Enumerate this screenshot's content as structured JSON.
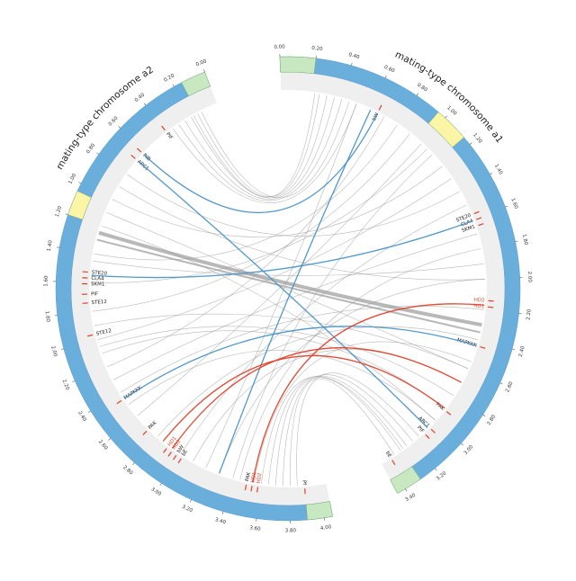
{
  "chart_data": {
    "type": "chord",
    "link_color": "#9a9a9a",
    "band_color": "#6aaedb",
    "track_color": "#efefef",
    "chromosomes": [
      {
        "name": "mating-type chromosome a1",
        "length": 3.45,
        "ticks": [
          {
            "value": 0,
            "label": "0.00"
          },
          {
            "value": 0.2,
            "label": "0.20"
          },
          {
            "value": 0.4,
            "label": "0.40"
          },
          {
            "value": 0.6,
            "label": "0.60"
          },
          {
            "value": 0.8,
            "label": "0.80"
          },
          {
            "value": 1,
            "label": "1.00"
          },
          {
            "value": 1.2,
            "label": "1.20"
          },
          {
            "value": 1.4,
            "label": "1.40"
          },
          {
            "value": 1.6,
            "label": "1.60"
          },
          {
            "value": 1.8,
            "label": "1.80"
          },
          {
            "value": 2,
            "label": "2.00"
          },
          {
            "value": 2.2,
            "label": "2.20"
          },
          {
            "value": 2.4,
            "label": "2.40"
          },
          {
            "value": 2.6,
            "label": "2.60"
          },
          {
            "value": 2.8,
            "label": "2.80"
          },
          {
            "value": 3,
            "label": "3.00"
          },
          {
            "value": 3.2,
            "label": "3.20"
          },
          {
            "value": 3.4,
            "label": "3.40"
          }
        ],
        "regions": [
          {
            "start": 0,
            "end": 0.2,
            "color": "#c8e8c2"
          },
          {
            "start": 0.95,
            "end": 1.15,
            "color": "#fbf5a6"
          },
          {
            "start": 3.3,
            "end": 3.45,
            "color": "#c8e8c2"
          }
        ],
        "genes": [
          {
            "name": "bW",
            "pos": 0.65,
            "color": "#222222"
          },
          {
            "name": "STE20",
            "pos": 1.57,
            "color": "#222222"
          },
          {
            "name": "CLA4",
            "pos": 1.61,
            "color": "#222222"
          },
          {
            "name": "SKM1",
            "pos": 1.65,
            "color": "#222222"
          },
          {
            "name": "HD2",
            "pos": 2.14,
            "color": "#e0402a"
          },
          {
            "name": "HD1",
            "pos": 2.18,
            "color": "#e0402a"
          },
          {
            "name": "MAPKKK",
            "pos": 2.44,
            "color": "#222222"
          },
          {
            "name": "PAK",
            "pos": 2.91,
            "color": "#222222"
          },
          {
            "name": "ARC1",
            "pos": 3.06,
            "color": "#222222"
          },
          {
            "name": "PIF",
            "pos": 3.11,
            "color": "#222222"
          },
          {
            "name": "bE",
            "pos": 3.38,
            "color": "#222222"
          }
        ]
      },
      {
        "name": "mating-type chromosome a2",
        "length": 4.05,
        "ticks": [
          {
            "value": 0,
            "label": "0.00"
          },
          {
            "value": 0.2,
            "label": "0.20"
          },
          {
            "value": 0.4,
            "label": "0.40"
          },
          {
            "value": 0.6,
            "label": "0.60"
          },
          {
            "value": 0.8,
            "label": "0.80"
          },
          {
            "value": 1,
            "label": "1.00"
          },
          {
            "value": 1.2,
            "label": "1.20"
          },
          {
            "value": 1.4,
            "label": "1.40"
          },
          {
            "value": 1.6,
            "label": "1.60"
          },
          {
            "value": 1.8,
            "label": "1.80"
          },
          {
            "value": 2,
            "label": "2.00"
          },
          {
            "value": 2.2,
            "label": "2.20"
          },
          {
            "value": 2.4,
            "label": "2.40"
          },
          {
            "value": 2.6,
            "label": "2.60"
          },
          {
            "value": 2.8,
            "label": "2.80"
          },
          {
            "value": 3,
            "label": "3.00"
          },
          {
            "value": 3.2,
            "label": "3.20"
          },
          {
            "value": 3.4,
            "label": "3.40"
          },
          {
            "value": 3.6,
            "label": "3.60"
          },
          {
            "value": 3.8,
            "label": "3.80"
          },
          {
            "value": 4,
            "label": "4.00"
          }
        ],
        "regions": [
          {
            "start": 0,
            "end": 0.15,
            "color": "#c8e8c2"
          },
          {
            "start": 1.05,
            "end": 1.2,
            "color": "#fbf5a6"
          },
          {
            "start": 3.9,
            "end": 4.05,
            "color": "#c8e8c2"
          }
        ],
        "genes": [
          {
            "name": "PIF",
            "pos": 0.4,
            "color": "#222222"
          },
          {
            "name": "RIB",
            "pos": 0.62,
            "color": "#222222"
          },
          {
            "name": "ARC1",
            "pos": 0.68,
            "color": "#222222"
          },
          {
            "name": "STE20",
            "pos": 1.53,
            "color": "#222222"
          },
          {
            "name": "CLA4",
            "pos": 1.57,
            "color": "#222222"
          },
          {
            "name": "SKM1",
            "pos": 1.61,
            "color": "#222222"
          },
          {
            "name": "PIF",
            "pos": 1.68,
            "color": "#222222"
          },
          {
            "name": "STE12",
            "pos": 1.74,
            "color": "#222222"
          },
          {
            "name": "STE12",
            "pos": 1.96,
            "color": "#222222"
          },
          {
            "name": "MAPKKK",
            "pos": 2.45,
            "color": "#222222"
          },
          {
            "name": "PAK",
            "pos": 2.72,
            "color": "#222222"
          },
          {
            "name": "HD1",
            "pos": 2.9,
            "color": "#e0402a"
          },
          {
            "name": "HD2",
            "pos": 2.94,
            "color": "#e0402a"
          },
          {
            "name": "bW",
            "pos": 2.98,
            "color": "#222222"
          },
          {
            "name": "bE",
            "pos": 3.02,
            "color": "#222222"
          },
          {
            "name": "PAK",
            "pos": 3.5,
            "color": "#222222"
          },
          {
            "name": "HD1",
            "pos": 3.54,
            "color": "#e0402a"
          },
          {
            "name": "HD2",
            "pos": 3.58,
            "color": "#e0402a"
          },
          {
            "name": "Pf",
            "pos": 3.9,
            "color": "#222222"
          }
        ]
      }
    ],
    "links": [
      {
        "a": 0.25,
        "b": 0.15
      },
      {
        "a": 0.3,
        "b": 0.2
      },
      {
        "a": 0.35,
        "b": 0.25
      },
      {
        "a": 0.4,
        "b": 0.3
      },
      {
        "a": 0.45,
        "b": 0.12
      },
      {
        "a": 0.5,
        "b": 0.35
      },
      {
        "a": 0.22,
        "b": 0.18
      },
      {
        "a": 3.25,
        "b": 3.65
      },
      {
        "a": 3.3,
        "b": 3.7
      },
      {
        "a": 3.2,
        "b": 3.75
      },
      {
        "a": 3.35,
        "b": 3.8
      },
      {
        "a": 3.15,
        "b": 3.85
      },
      {
        "a": 3.28,
        "b": 3.6
      },
      {
        "a": 2.3,
        "b": 1.25,
        "width": 4
      },
      {
        "a": 2.35,
        "b": 1.3,
        "width": 2
      },
      {
        "a": 2.0,
        "b": 0.9
      },
      {
        "a": 1.2,
        "b": 1.0
      },
      {
        "a": 2.6,
        "b": 1.1
      },
      {
        "a": 0.8,
        "b": 1.4
      },
      {
        "a": 1.9,
        "b": 1.45
      },
      {
        "a": 0.9,
        "b": 1.8
      },
      {
        "a": 2.6,
        "b": 1.9
      },
      {
        "a": 1.3,
        "b": 2.0
      },
      {
        "a": 2.9,
        "b": 2.1
      },
      {
        "a": 0.7,
        "b": 2.2
      },
      {
        "a": 1.7,
        "b": 2.3
      },
      {
        "a": 3.0,
        "b": 2.5
      },
      {
        "a": 1.0,
        "b": 2.6
      },
      {
        "a": 2.4,
        "b": 2.8
      },
      {
        "a": 1.5,
        "b": 3.0
      },
      {
        "a": 2.7,
        "b": 3.1
      },
      {
        "a": 0.5,
        "b": 3.2
      },
      {
        "a": 2.0,
        "b": 3.3
      },
      {
        "a": 1.1,
        "b": 3.4
      },
      {
        "a": 2.8,
        "b": 2.05
      },
      {
        "a": 3.0,
        "b": 1.2
      },
      {
        "a": 1.4,
        "b": 0.8
      },
      {
        "a": 1.8,
        "b": 3.45
      },
      {
        "a": 2.55,
        "b": 3.55
      },
      {
        "a": 2.2,
        "b": 2.4
      },
      {
        "a": 1.05,
        "b": 1.6
      },
      {
        "a": 3.07,
        "b": 0.68,
        "color": "#4a93c8"
      },
      {
        "a": 0.65,
        "b": 0.62,
        "color": "#4a93c8"
      },
      {
        "a": 1.61,
        "b": 1.55,
        "color": "#4a93c8"
      },
      {
        "a": 2.44,
        "b": 2.45,
        "color": "#4a93c8"
      },
      {
        "a": 0.6,
        "b": 3.3,
        "color": "#4a93c8"
      },
      {
        "a": 2.17,
        "b": 3.54,
        "color": "#e0402a"
      },
      {
        "a": 2.7,
        "b": 2.93,
        "color": "#e0402a"
      },
      {
        "a": 2.9,
        "b": 2.85,
        "color": "#e0402a"
      }
    ]
  }
}
